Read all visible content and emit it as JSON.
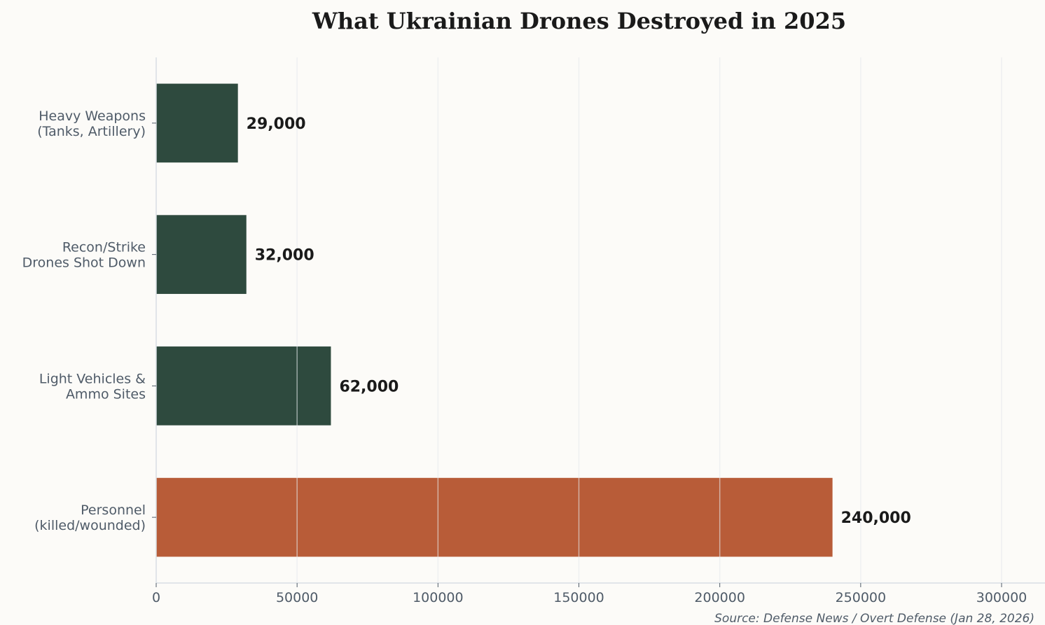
{
  "chart_data": {
    "type": "bar",
    "orientation": "horizontal",
    "title": "What Ukrainian Drones Destroyed in 2025",
    "categories": [
      "Heavy Weapons\n(Tanks, Artillery)",
      "Recon/Strike\nDrones Shot Down",
      "Light Vehicles &\nAmmo Sites",
      "Personnel\n(killed/wounded)"
    ],
    "values": [
      29000,
      32000,
      62000,
      240000
    ],
    "value_labels": [
      "29,000",
      "32,000",
      "62,000",
      "240,000"
    ],
    "bar_colors": [
      "#2e4a3e",
      "#2e4a3e",
      "#2e4a3e",
      "#b85c38"
    ],
    "xlim": [
      0,
      300000
    ],
    "xticks": [
      0,
      50000,
      100000,
      150000,
      200000,
      250000,
      300000
    ],
    "xlabel": "",
    "ylabel": "",
    "grid": "x",
    "source": "Source: Defense News / Overt Defense (Jan 28, 2026)"
  }
}
